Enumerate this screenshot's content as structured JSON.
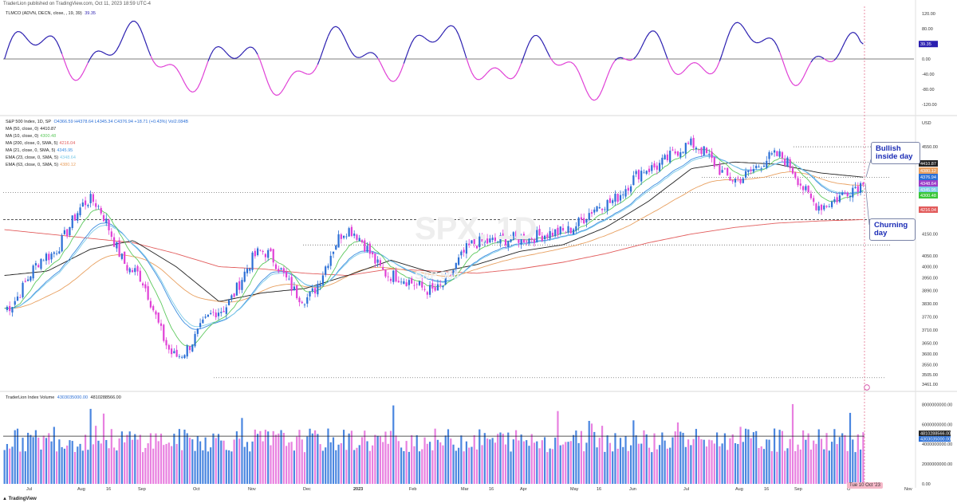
{
  "header": {
    "published": "TraderLion published on TradingView.com, Oct 11, 2023 18:59 UTC-4"
  },
  "tlmco": {
    "legend": "TLMCO (ADVN, DECN, close, , 19, 39)",
    "value": "39.35",
    "value_label": "39.35",
    "axis_ticks": [
      "120.00",
      "80.00",
      "40.00",
      "0.00",
      "-40.00",
      "-80.00",
      "-120.00"
    ],
    "color_pos": "#2b1fb0",
    "color_neg": "#e040d6"
  },
  "price": {
    "symbol_line": "S&P 500 Index, 1D, SP",
    "ohlc": "O4366.59 H4378.64 L4345.34 C4376.94 +18.71 (+0.43%) Vol2.084B",
    "ma_lines": [
      {
        "label": "MA (50, close, 0)",
        "value": "4410.87",
        "color": "#222222"
      },
      {
        "label": "MA (10, close, 0)",
        "value": "4300.48",
        "color": "#5ec95e"
      },
      {
        "label": "MA (200, close, 0, SMA, 5)",
        "value": "4216.04",
        "color": "#e25c5c"
      },
      {
        "label": "MA (21, close, 0, SMA, 5)",
        "value": "4345.95",
        "color": "#3c8de0"
      },
      {
        "label": "EMA (23, close, 0, SMA, 5)",
        "value": "4348.64",
        "color": "#7ecbe8"
      },
      {
        "label": "EMA (63, close, 0, SMA, 5)",
        "value": "4380.12",
        "color": "#e8a060"
      }
    ],
    "currency": "USD",
    "axis_ticks": [
      "4550.00",
      "4410.87",
      "4380.12",
      "4376.94",
      "4348.64",
      "4345.95",
      "4300.48",
      "4216.04",
      "4150.00",
      "4050.00",
      "4000.00",
      "3950.00",
      "3890.00",
      "3830.00",
      "3770.00",
      "3710.00",
      "3650.00",
      "3600.00",
      "3550.00",
      "3505.00",
      "3461.00"
    ],
    "badges": [
      {
        "text": "4410.87",
        "color": "#222222"
      },
      {
        "text": "4380.12",
        "color": "#e8a060"
      },
      {
        "text": "4376.94",
        "color": "#2b6fd6"
      },
      {
        "text": "4348.64",
        "color": "#9a3cc8"
      },
      {
        "text": "4345.95",
        "color": "#7ecbe8"
      },
      {
        "text": "4300.48",
        "color": "#39c639"
      },
      {
        "text": "4216.04",
        "color": "#e25c5c"
      }
    ],
    "watermark": "SPX, 1D",
    "watermark_sub": "S&P 500"
  },
  "annotations": {
    "bullish": "Bullish inside day",
    "churning": "Churning day"
  },
  "volume": {
    "legend": "TraderLion Index Volume",
    "v1": "4303035000.00",
    "v2": "4810288566.00",
    "axis_ticks": [
      "8000000000.00",
      "6000000000.00",
      "4000000000.00",
      "2000000000.00",
      "0.00"
    ],
    "badge1": "4810288566.00",
    "badge2": "4303035000.00"
  },
  "xaxis": {
    "labels": [
      "Jul",
      "Aug",
      "16",
      "Sep",
      "Oct",
      "Nov",
      "Dec",
      "2023",
      "Feb",
      "Mar",
      "16",
      "Apr",
      "May",
      "16",
      "Jun",
      "Jul",
      "Aug",
      "16",
      "Sep",
      "O",
      "Nov"
    ],
    "date_badge": "Tue 10 Oct '23"
  },
  "tv_logo": "TradingView",
  "chart_data": {
    "type": "candlestick",
    "title": "S&P 500 Index, 1D, SP",
    "x": [
      "Jul",
      "Aug",
      "16",
      "Sep",
      "Oct",
      "Nov",
      "Dec",
      "2023",
      "Feb",
      "Mar",
      "16",
      "Apr",
      "May",
      "16",
      "Jun",
      "Jul",
      "Aug",
      "16",
      "Sep",
      "O",
      "Nov"
    ],
    "anchors_close": [
      3810,
      4050,
      4305,
      3980,
      3590,
      3800,
      4070,
      3855,
      4170,
      3960,
      3890,
      4110,
      4130,
      4160,
      4290,
      4450,
      4560,
      4400,
      4510,
      4280,
      4377
    ],
    "ylim": [
      3461,
      4620
    ],
    "last_close": 4376.94,
    "levels": {
      "resistance_top": 4550,
      "r2": 4480,
      "r3": 4410,
      "support": 4216,
      "low": 3491
    },
    "series": [
      {
        "name": "MA (50, close, 0)",
        "values": [
          3960,
          3980,
          4080,
          4120,
          4000,
          3840,
          3880,
          3900,
          3960,
          4030,
          3970,
          4010,
          4070,
          4100,
          4180,
          4300,
          4450,
          4480,
          4470,
          4430,
          4410.87
        ]
      },
      {
        "name": "MA (200, close, 0, SMA, 5)",
        "values": [
          4170,
          4150,
          4130,
          4110,
          4060,
          4000,
          3990,
          3970,
          3960,
          3990,
          3980,
          3970,
          3990,
          4020,
          4060,
          4110,
          4150,
          4180,
          4200,
          4210,
          4216.04
        ]
      }
    ],
    "tlmco": {
      "ylim": [
        -130,
        130
      ],
      "last": 39.35
    },
    "volume": {
      "ylim": [
        0,
        8600000000
      ],
      "ma": 4810288566,
      "last": 4303035000
    }
  }
}
